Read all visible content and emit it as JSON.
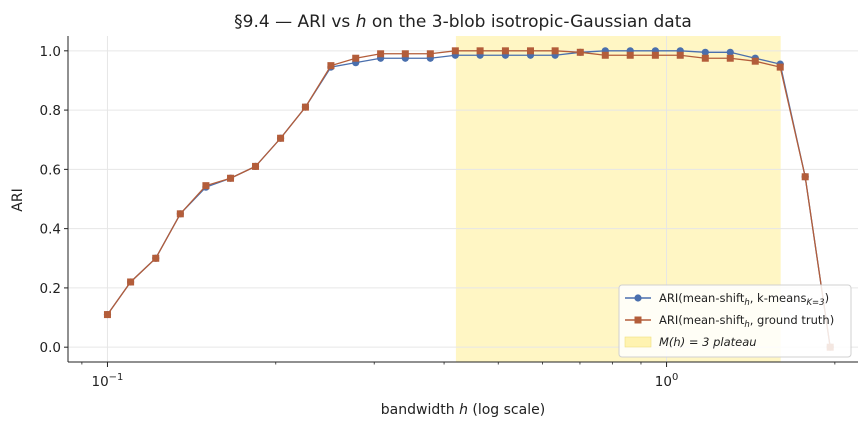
{
  "chart_data": {
    "type": "line",
    "title_prefix": "§9.4 — ARI vs ",
    "title_var": "h",
    "title_suffix": " on the 3-blob isotropic-Gaussian data",
    "xlabel_prefix": "bandwidth ",
    "xlabel_var": "h",
    "xlabel_suffix": " (log scale)",
    "ylabel": "ARI",
    "xscale": "log",
    "xlim": [
      0.085,
      2.2
    ],
    "ylim": [
      -0.05,
      1.05
    ],
    "grid": true,
    "legend_position": "lower-right",
    "x_ticks": [
      {
        "value": 0.1,
        "base": "10",
        "exp": "−1"
      },
      {
        "value": 1.0,
        "base": "10",
        "exp": "0"
      }
    ],
    "y_ticks": [
      {
        "value": 0.0,
        "label": "0.0"
      },
      {
        "value": 0.2,
        "label": "0.2"
      },
      {
        "value": 0.4,
        "label": "0.4"
      },
      {
        "value": 0.6,
        "label": "0.6"
      },
      {
        "value": 0.8,
        "label": "0.8"
      },
      {
        "value": 1.0,
        "label": "1.0"
      }
    ],
    "plateau": {
      "x_start": 0.42,
      "x_end": 1.6,
      "color": "#fff3b0",
      "label": "M(h) = 3 plateau"
    },
    "x": [
      0.1,
      0.11,
      0.122,
      0.135,
      0.15,
      0.166,
      0.184,
      0.204,
      0.226,
      0.251,
      0.278,
      0.308,
      0.341,
      0.378,
      0.419,
      0.464,
      0.515,
      0.571,
      0.632,
      0.701,
      0.777,
      0.861,
      0.955,
      1.058,
      1.173,
      1.3,
      1.441,
      1.597,
      1.77,
      1.962
    ],
    "series": [
      {
        "name_prefix": "ARI(mean-shift",
        "name_sub": "h",
        "name_mid": ", k-means",
        "name_sub2": "K=3",
        "name_suffix": ")",
        "color": "#4a6fad",
        "marker": "circle",
        "values": [
          0.11,
          0.22,
          0.3,
          0.45,
          0.54,
          0.57,
          0.61,
          0.705,
          0.81,
          0.945,
          0.96,
          0.975,
          0.975,
          0.975,
          0.985,
          0.985,
          0.985,
          0.985,
          0.985,
          0.995,
          1.0,
          1.0,
          1.0,
          1.0,
          0.995,
          0.995,
          0.975,
          0.955,
          0.575,
          0.0
        ]
      },
      {
        "name_prefix": "ARI(mean-shift",
        "name_sub": "h",
        "name_mid": ", ground truth)",
        "name_sub2": "",
        "name_suffix": "",
        "color": "#b35d3a",
        "marker": "square",
        "values": [
          0.11,
          0.22,
          0.3,
          0.45,
          0.545,
          0.57,
          0.61,
          0.705,
          0.81,
          0.95,
          0.975,
          0.99,
          0.99,
          0.99,
          1.0,
          1.0,
          1.0,
          1.0,
          1.0,
          0.995,
          0.985,
          0.985,
          0.985,
          0.985,
          0.975,
          0.975,
          0.965,
          0.945,
          0.575,
          0.0
        ]
      }
    ]
  }
}
